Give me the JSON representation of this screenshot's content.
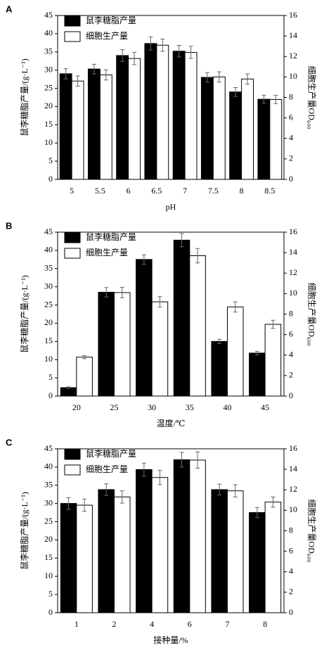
{
  "chart_data": [
    {
      "type": "bar",
      "panel_label": "A",
      "xlabel": "pH",
      "ylabel": "鼠李糖脂产量/(g·L⁻¹)",
      "y2label": "细胞生产量OD₆₀₀",
      "categories": [
        "5",
        "5.5",
        "6",
        "6.5",
        "7",
        "7.5",
        "8",
        "8.5"
      ],
      "series": [
        {
          "name": "鼠李糖脂产量",
          "color": "#000000",
          "axis": "y",
          "values": [
            29,
            30.3,
            34,
            37.3,
            35.2,
            28,
            24,
            22
          ],
          "errors": [
            1.4,
            1.3,
            1.6,
            1.8,
            1.6,
            1.3,
            1.2,
            1.1
          ]
        },
        {
          "name": "细胞生产量",
          "color": "#ffffff",
          "axis": "y2",
          "values": [
            9.6,
            10.2,
            11.8,
            13.1,
            12.4,
            10.0,
            9.8,
            7.8
          ],
          "errors": [
            0.5,
            0.5,
            0.6,
            0.6,
            0.6,
            0.5,
            0.5,
            0.4
          ]
        }
      ],
      "ylim": [
        0,
        45
      ],
      "yticks": [
        0,
        5,
        10,
        15,
        20,
        25,
        30,
        35,
        40,
        45
      ],
      "y2lim": [
        0,
        16
      ],
      "y2ticks": [
        0,
        2,
        4,
        6,
        8,
        10,
        12,
        14,
        16
      ],
      "legend": "upper left"
    },
    {
      "type": "bar",
      "panel_label": "B",
      "xlabel": "温度/℃",
      "ylabel": "鼠李糖脂产量/(g·L⁻¹)",
      "y2label": "细胞生产量OD₆₀₀",
      "categories": [
        "20",
        "25",
        "30",
        "35",
        "40",
        "45"
      ],
      "series": [
        {
          "name": "鼠李糖脂产量",
          "color": "#000000",
          "axis": "y",
          "values": [
            2.3,
            28.5,
            37.5,
            42.8,
            15,
            11.8
          ],
          "errors": [
            0.2,
            1.3,
            1.3,
            1.8,
            0.6,
            0.5
          ]
        },
        {
          "name": "细胞生产量",
          "color": "#ffffff",
          "axis": "y2",
          "values": [
            3.8,
            10.1,
            9.2,
            13.7,
            8.7,
            7.0
          ],
          "errors": [
            0.15,
            0.5,
            0.5,
            0.7,
            0.5,
            0.4
          ]
        }
      ],
      "ylim": [
        0,
        45
      ],
      "yticks": [
        0,
        5,
        10,
        15,
        20,
        25,
        30,
        35,
        40,
        45
      ],
      "y2lim": [
        0,
        16
      ],
      "y2ticks": [
        0,
        2,
        4,
        6,
        8,
        10,
        12,
        14,
        16
      ],
      "legend": "upper left"
    },
    {
      "type": "bar",
      "panel_label": "C",
      "xlabel": "接种量/%",
      "ylabel": "鼠李糖脂产量/(g·L⁻¹)",
      "y2label": "细胞生产量OD₆₀₀",
      "categories": [
        "1",
        "2",
        "4",
        "6",
        "7",
        "8"
      ],
      "series": [
        {
          "name": "鼠李糖脂产量",
          "color": "#000000",
          "axis": "y",
          "values": [
            30,
            33.8,
            39.3,
            42,
            33.8,
            27.5
          ],
          "errors": [
            1.6,
            1.6,
            1.8,
            2.0,
            1.5,
            1.4
          ]
        },
        {
          "name": "细胞生产量",
          "color": "#ffffff",
          "axis": "y2",
          "values": [
            10.5,
            11.3,
            13.2,
            14.9,
            11.9,
            10.8
          ],
          "errors": [
            0.6,
            0.6,
            0.7,
            0.8,
            0.6,
            0.5
          ]
        }
      ],
      "ylim": [
        0,
        45
      ],
      "yticks": [
        0,
        5,
        10,
        15,
        20,
        25,
        30,
        35,
        40,
        45
      ],
      "y2lim": [
        0,
        16
      ],
      "y2ticks": [
        0,
        2,
        4,
        6,
        8,
        10,
        12,
        14,
        16
      ],
      "legend": "upper left"
    }
  ]
}
